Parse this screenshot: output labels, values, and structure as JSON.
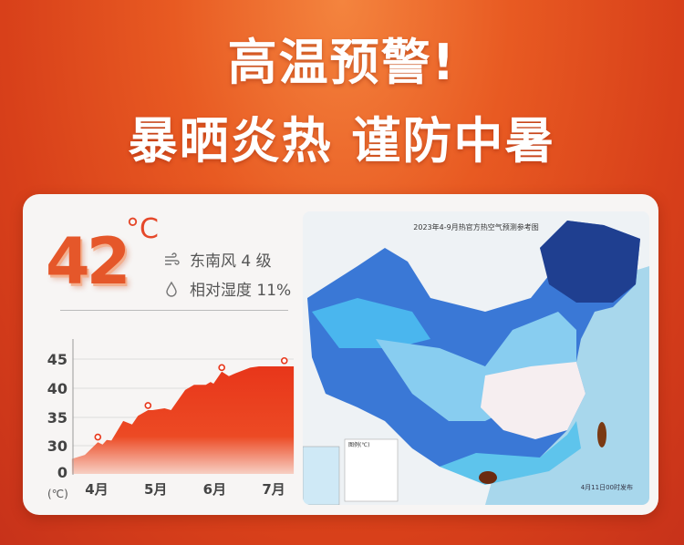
{
  "headline": {
    "line1": "高温预警!",
    "line2": "暴晒炎热 谨防中暑"
  },
  "weather": {
    "temperature": "42",
    "unit": "°C",
    "wind": "东南风 4 级",
    "humidity": "相对湿度 11%",
    "wind_icon": "wind-icon",
    "humidity_icon": "droplet-icon"
  },
  "colors": {
    "accent": "#e8431c",
    "background": "#d8401a"
  },
  "chart_data": {
    "type": "area",
    "ylabel": "(℃)",
    "y_ticks": [
      "0",
      "30",
      "35",
      "40",
      "45"
    ],
    "x_ticks": [
      {
        "label": "4月",
        "x": 4
      },
      {
        "label": "5月",
        "x": 5
      },
      {
        "label": "6月",
        "x": 6
      },
      {
        "label": "7月",
        "x": 7
      }
    ],
    "grid": true,
    "series": [
      {
        "x": [
          3.58,
          3.8,
          4.02,
          4.1,
          4.17,
          4.25,
          4.45,
          4.6,
          4.7,
          4.87,
          4.95,
          5.15,
          5.26,
          5.5,
          5.65,
          5.85,
          5.93,
          5.98,
          6.12,
          6.24,
          6.35,
          6.6,
          6.75,
          7.34
        ],
        "y": [
          27.7,
          28.4,
          30.6,
          30.2,
          31.0,
          30.9,
          34.3,
          33.7,
          35.2,
          36.2,
          36.2,
          36.5,
          36.2,
          39.7,
          40.6,
          40.6,
          41.1,
          40.8,
          42.9,
          42.1,
          42.6,
          43.6,
          43.8,
          43.8
        ]
      }
    ],
    "markers": [
      {
        "x": 4.02,
        "y": 31.5
      },
      {
        "x": 4.87,
        "y": 37.0
      },
      {
        "x": 6.12,
        "y": 43.6
      },
      {
        "x": 7.18,
        "y": 44.8
      }
    ]
  },
  "map": {
    "title": "2023年4-9月热官方热空气预测参考图",
    "legend_title": "图例(℃)",
    "footer": "4月11日00时发布"
  }
}
